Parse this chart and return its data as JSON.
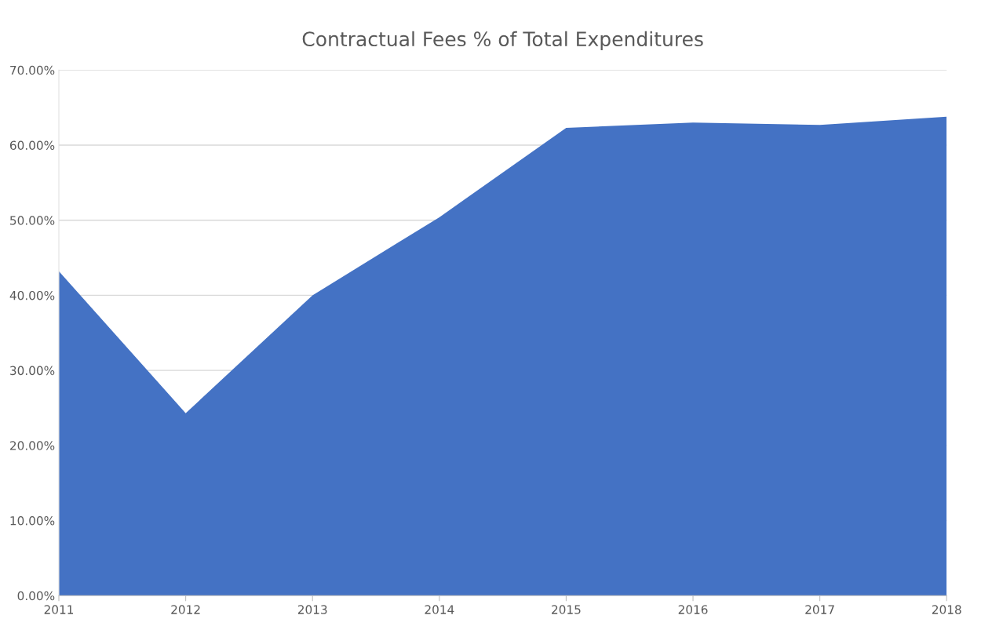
{
  "chart_data": {
    "type": "area",
    "title": "Contractual Fees % of Total Expenditures",
    "categories": [
      "2011",
      "2012",
      "2013",
      "2014",
      "2015",
      "2016",
      "2017",
      "2018"
    ],
    "series": [
      {
        "color": "#4472c4",
        "values": [
          43.2,
          24.3,
          40.0,
          50.4,
          62.3,
          63.0,
          62.7,
          63.8
        ]
      }
    ],
    "ylim": [
      0,
      70
    ],
    "yticks": [
      {
        "value": 0,
        "label": "0.00%"
      },
      {
        "value": 10,
        "label": "10.00%"
      },
      {
        "value": 20,
        "label": "20.00%"
      },
      {
        "value": 30,
        "label": "30.00%"
      },
      {
        "value": 40,
        "label": "40.00%"
      },
      {
        "value": 50,
        "label": "50.00%"
      },
      {
        "value": 60,
        "label": "60.00%"
      },
      {
        "value": 70,
        "label": "70.00%"
      }
    ],
    "grid": "y",
    "legend": false
  }
}
